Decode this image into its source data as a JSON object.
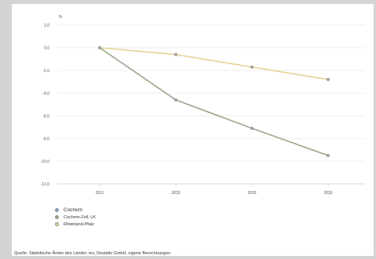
{
  "chart_data": {
    "type": "line",
    "unit_label": "%",
    "x": [
      "2011",
      "2020",
      "2025",
      "2030"
    ],
    "y_ticks": [
      "2,0",
      "0,0",
      "-2,0",
      "-4,0",
      "-6,0",
      "-8,0",
      "-10,0",
      "-12,0"
    ],
    "ylim": [
      -12.0,
      2.0
    ],
    "grid": true,
    "legend_position": "bottom-left",
    "series": [
      {
        "name": "Cochem",
        "color": "#7ea1cf",
        "values": [
          null,
          null,
          null,
          null
        ]
      },
      {
        "name": "Cochem-Zell, LK",
        "color": "#9aa58c",
        "values": [
          0.0,
          -4.6,
          -7.1,
          -9.5
        ]
      },
      {
        "name": "Rheinland-Pfalz",
        "color": "#e3d392",
        "values": [
          0.0,
          -0.6,
          -1.7,
          -2.8
        ]
      }
    ]
  },
  "source": "Quelle: Statistische Ämter des Länder, ies, Destatis GmbH, eigene Berechnungen"
}
